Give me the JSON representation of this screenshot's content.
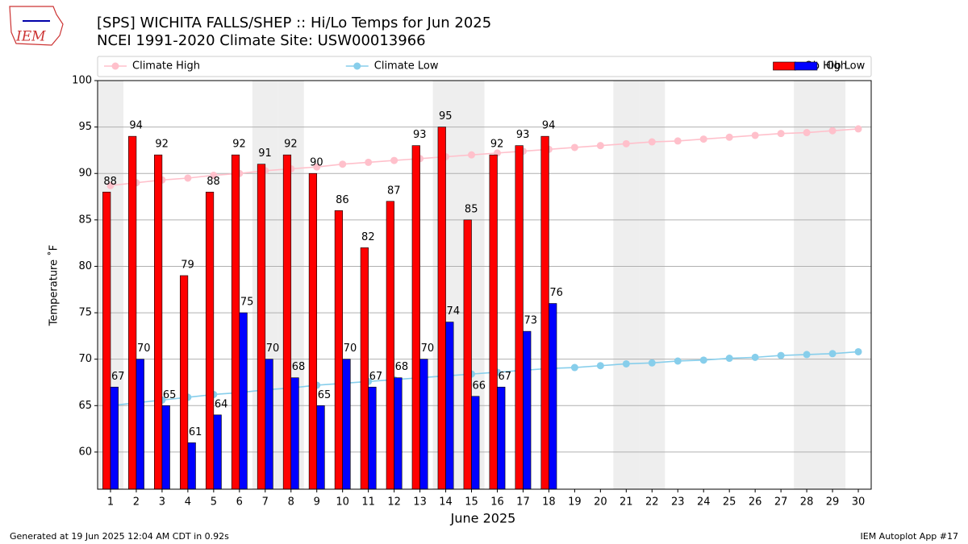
{
  "chart_data": {
    "type": "bar",
    "title": "[SPS] WICHITA FALLS/SHEP :: Hi/Lo Temps for Jun 2025",
    "subtitle": "NCEI 1991-2020 Climate Site: USW00013966",
    "logo_text": "IEM",
    "xlabel": "June 2025",
    "ylabel": "Temperature ˚F",
    "footer_left": "Generated at 19 Jun 2025 12:04 AM CDT in 0.92s",
    "footer_right": "IEM Autoplot App #17",
    "categories": [
      "1",
      "2",
      "3",
      "4",
      "5",
      "6",
      "7",
      "8",
      "9",
      "10",
      "11",
      "12",
      "13",
      "14",
      "15",
      "16",
      "17",
      "18",
      "19",
      "20",
      "21",
      "22",
      "23",
      "24",
      "25",
      "26",
      "27",
      "28",
      "29",
      "30"
    ],
    "shaded_categories": [
      "1",
      "7",
      "8",
      "14",
      "15",
      "21",
      "22",
      "28",
      "29"
    ],
    "ylim": [
      56,
      100
    ],
    "yticks": [
      60,
      65,
      70,
      75,
      80,
      85,
      90,
      95,
      100
    ],
    "grid": true,
    "legend": "top",
    "series": [
      {
        "name": "Climate High",
        "type": "line",
        "color": "#ffc0cb",
        "values": [
          88.7,
          89.0,
          89.3,
          89.5,
          89.8,
          90.0,
          90.3,
          90.5,
          90.7,
          91.0,
          91.2,
          91.4,
          91.6,
          91.8,
          92.0,
          92.2,
          92.4,
          92.6,
          92.8,
          93.0,
          93.2,
          93.4,
          93.5,
          93.7,
          93.9,
          94.1,
          94.3,
          94.4,
          94.6,
          94.8
        ]
      },
      {
        "name": "Climate Low",
        "type": "line",
        "color": "#87ceeb",
        "values": [
          65.0,
          65.3,
          65.6,
          65.9,
          66.2,
          66.4,
          66.7,
          66.9,
          67.2,
          67.4,
          67.6,
          67.8,
          68.0,
          68.2,
          68.4,
          68.6,
          68.8,
          69.0,
          69.1,
          69.3,
          69.5,
          69.6,
          69.8,
          69.9,
          70.1,
          70.2,
          70.4,
          70.5,
          70.6,
          70.8
        ]
      },
      {
        "name": "Ob High",
        "type": "bar",
        "color": "#ff0000",
        "values": [
          88,
          94,
          92,
          79,
          88,
          92,
          91,
          92,
          90,
          86,
          82,
          87,
          93,
          95,
          85,
          92,
          93,
          94,
          null,
          null,
          null,
          null,
          null,
          null,
          null,
          null,
          null,
          null,
          null,
          null
        ]
      },
      {
        "name": "Ob Low",
        "type": "bar",
        "color": "#0000ff",
        "values": [
          67,
          70,
          65,
          61,
          64,
          75,
          70,
          68,
          65,
          70,
          67,
          68,
          70,
          74,
          66,
          67,
          73,
          76,
          null,
          null,
          null,
          null,
          null,
          null,
          null,
          null,
          null,
          null,
          null,
          null
        ]
      }
    ]
  }
}
